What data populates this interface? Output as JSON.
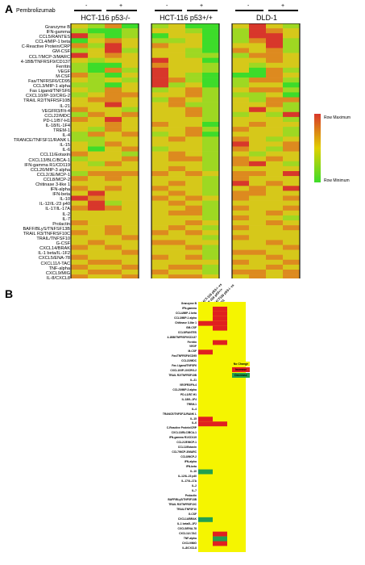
{
  "panelA": {
    "letter": "A",
    "treatment_label": "Pembrolizumab",
    "minus": "-",
    "plus": "+",
    "groups": [
      "HCT-116 p53-/-",
      "HCT-116 p53+/+",
      "DLD-1"
    ],
    "legend": {
      "max": "Row Maximum",
      "min": "Row Minimum",
      "color_max": "#d8372b",
      "color_mid": "#e0d000",
      "color_min": "#3ddc2a"
    },
    "rows": [
      "Granzyme B",
      "IFN-gamma",
      "CCL5/RANTES",
      "CCL4/MIP-1 beta",
      "C-Reactive Protein/CRP",
      "GM-CSF",
      "CCL7/MCP-3/MARC",
      "4-1BB/TNFRSF9/CD137",
      "Ferritin",
      "VEGF",
      "M-CSF",
      "Fas/TNFRSF6/CD95",
      "CCL3/MIP-1 alpha",
      "Fas Ligand/TNFSF6",
      "CXCL10/IP-10/CRG-2",
      "TRAIL R2/TNFRSF10B",
      "IL-21",
      "VEGFR3/Flt-4",
      "CCL22/MDC",
      "PD-L1/B7-H1",
      "IL-18/IL-1F4",
      "TREM-1",
      "IL-4",
      "TRANCE/TNFSF11/RANK L",
      "IL-15",
      "IL-6",
      "CCL11/Eotaxin",
      "CXCL13/BLC/BCA-1",
      "IFN-gamma R1/CD119",
      "CCL20/MIP-3 alpha",
      "CCL2/JE/MCP-1",
      "CCL8/MCP-2",
      "Chitinase 3-like 1",
      "IFN-alpha",
      "IFN-beta",
      "IL-10",
      "IL-12/IL-23 p40",
      "IL-17/IL-17A",
      "IL-2",
      "IL-7",
      "Prolactin",
      "BAFF/BLyS/TNFSF13B",
      "TRAIL R3/TNFRSF10C",
      "TRAIL/TNFSF10",
      "G-CSF",
      "CXCL14/BRAK",
      "IL-1 beta/IL-1F2",
      "CXCL5/ENA-78",
      "CXCL11/I-TAC",
      "TNF-alpha",
      "CXCL9/MIG",
      "IL-8/CXCL8"
    ],
    "heatmap_values": [
      [
        2,
        1,
        3,
        0,
        1,
        2,
        0,
        0,
        2,
        4,
        2,
        1
      ],
      [
        1,
        0,
        0,
        1,
        2,
        2,
        1,
        0,
        1,
        4,
        3,
        2
      ],
      [
        4,
        1,
        0,
        1,
        0,
        2,
        2,
        0,
        1,
        4,
        4,
        2
      ],
      [
        0,
        2,
        3,
        2,
        1,
        1,
        2,
        0,
        1,
        3,
        4,
        1
      ],
      [
        3,
        1,
        4,
        2,
        3,
        2,
        2,
        0,
        2,
        2,
        4,
        1
      ],
      [
        1,
        2,
        4,
        1,
        2,
        2,
        1,
        0,
        3,
        2,
        3,
        1
      ],
      [
        4,
        2,
        3,
        2,
        2,
        2,
        1,
        1,
        1,
        3,
        3,
        2
      ],
      [
        2,
        1,
        2,
        2,
        4,
        2,
        2,
        0,
        2,
        2,
        3,
        2
      ],
      [
        1,
        0,
        0,
        2,
        3,
        2,
        2,
        1,
        2,
        1,
        2,
        2
      ],
      [
        1,
        0,
        3,
        1,
        4,
        2,
        2,
        1,
        2,
        0,
        3,
        1
      ],
      [
        3,
        1,
        0,
        2,
        4,
        2,
        1,
        0,
        0,
        0,
        3,
        2
      ],
      [
        2,
        1,
        2,
        1,
        4,
        3,
        1,
        0,
        1,
        3,
        3,
        1
      ],
      [
        1,
        1,
        0,
        2,
        4,
        1,
        2,
        0,
        1,
        2,
        2,
        0
      ],
      [
        2,
        1,
        3,
        2,
        1,
        2,
        3,
        1,
        2,
        3,
        3,
        1
      ],
      [
        1,
        2,
        3,
        3,
        2,
        2,
        3,
        1,
        1,
        1,
        2,
        0
      ],
      [
        2,
        3,
        3,
        2,
        1,
        3,
        2,
        1,
        2,
        1,
        3,
        3
      ],
      [
        2,
        2,
        4,
        2,
        2,
        3,
        1,
        1,
        2,
        2,
        3,
        1
      ],
      [
        3,
        2,
        2,
        1,
        2,
        2,
        3,
        1,
        2,
        4,
        2,
        1
      ],
      [
        1,
        3,
        2,
        3,
        2,
        2,
        3,
        1,
        1,
        2,
        1,
        4
      ],
      [
        3,
        2,
        4,
        2,
        2,
        2,
        2,
        1,
        2,
        2,
        2,
        1
      ],
      [
        2,
        2,
        3,
        2,
        3,
        2,
        2,
        0,
        2,
        3,
        2,
        2
      ],
      [
        2,
        1,
        3,
        2,
        2,
        2,
        3,
        1,
        3,
        2,
        2,
        1
      ],
      [
        1,
        3,
        2,
        3,
        1,
        2,
        3,
        0,
        2,
        2,
        2,
        1
      ],
      [
        1,
        1,
        2,
        2,
        2,
        3,
        2,
        1,
        3,
        2,
        1,
        2
      ],
      [
        2,
        1,
        3,
        2,
        2,
        2,
        2,
        1,
        4,
        2,
        2,
        3
      ],
      [
        2,
        0,
        2,
        3,
        1,
        2,
        2,
        1,
        3,
        2,
        1,
        3
      ],
      [
        3,
        2,
        2,
        1,
        2,
        3,
        2,
        1,
        2,
        1,
        2,
        2
      ],
      [
        1,
        2,
        2,
        3,
        2,
        3,
        3,
        1,
        3,
        2,
        3,
        2
      ],
      [
        2,
        1,
        3,
        2,
        2,
        2,
        2,
        1,
        3,
        4,
        2,
        1
      ],
      [
        2,
        2,
        2,
        2,
        2,
        3,
        2,
        1,
        2,
        2,
        2,
        2
      ],
      [
        1,
        3,
        3,
        3,
        3,
        2,
        3,
        2,
        3,
        3,
        2,
        4
      ],
      [
        3,
        2,
        3,
        2,
        2,
        2,
        2,
        1,
        3,
        2,
        2,
        2
      ],
      [
        2,
        2,
        2,
        2,
        2,
        3,
        2,
        1,
        4,
        2,
        3,
        2
      ],
      [
        3,
        2,
        3,
        2,
        3,
        2,
        2,
        1,
        2,
        3,
        2,
        4
      ],
      [
        2,
        4,
        2,
        2,
        2,
        3,
        2,
        1,
        3,
        3,
        2,
        2
      ],
      [
        4,
        3,
        2,
        2,
        3,
        2,
        3,
        2,
        3,
        2,
        2,
        3
      ],
      [
        2,
        4,
        1,
        2,
        2,
        3,
        2,
        1,
        2,
        2,
        2,
        2
      ],
      [
        3,
        4,
        3,
        2,
        2,
        2,
        3,
        1,
        3,
        2,
        2,
        3
      ],
      [
        2,
        2,
        2,
        2,
        2,
        3,
        3,
        1,
        2,
        2,
        3,
        2
      ],
      [
        2,
        2,
        2,
        2,
        2,
        2,
        2,
        1,
        3,
        2,
        2,
        1
      ],
      [
        3,
        2,
        2,
        2,
        2,
        2,
        3,
        2,
        2,
        2,
        3,
        2
      ],
      [
        2,
        2,
        3,
        2,
        2,
        3,
        2,
        1,
        3,
        2,
        2,
        3
      ],
      [
        3,
        2,
        3,
        2,
        3,
        2,
        3,
        2,
        2,
        2,
        2,
        2
      ],
      [
        2,
        2,
        2,
        3,
        2,
        2,
        2,
        1,
        3,
        2,
        2,
        2
      ],
      [
        2,
        3,
        2,
        2,
        3,
        3,
        2,
        2,
        2,
        2,
        3,
        2
      ],
      [
        3,
        2,
        3,
        2,
        2,
        2,
        3,
        1,
        2,
        2,
        2,
        3
      ],
      [
        2,
        2,
        2,
        3,
        2,
        2,
        2,
        1,
        3,
        3,
        2,
        2
      ],
      [
        3,
        2,
        2,
        2,
        3,
        2,
        3,
        1,
        2,
        2,
        3,
        2
      ],
      [
        2,
        3,
        3,
        2,
        2,
        2,
        2,
        2,
        3,
        2,
        2,
        3
      ],
      [
        3,
        2,
        2,
        3,
        2,
        3,
        3,
        1,
        2,
        2,
        3,
        2
      ],
      [
        2,
        3,
        3,
        2,
        3,
        2,
        2,
        1,
        3,
        3,
        2,
        3
      ],
      [
        3,
        2,
        2,
        3,
        2,
        3,
        3,
        2,
        2,
        3,
        2,
        3
      ]
    ]
  },
  "panelB": {
    "letter": "B",
    "columns": [
      "HCT-116 p53-/- vs HCT-116 p53+/+",
      "HCT116 p53-/- vs DLD1"
    ],
    "legend": [
      {
        "label": "No Change",
        "color": "#f5f500"
      },
      {
        "label": "Increase",
        "color": "#e02020"
      },
      {
        "label": "Decrease",
        "color": "#22a050"
      }
    ],
    "rows": [
      "Granzyme B",
      "IFN-gamma",
      "CCL4/MIP-1 beta",
      "CCL3/MIP-1 alpha",
      "Chitinase 3-like 1",
      "GM-CSF",
      "CCL5/RANTES",
      "4-1BB/TNFRSF9/CD137",
      "Ferritin",
      "VEGF",
      "M-CSF",
      "Fas/TNFRSF6/CD95",
      "CCL22/MDC",
      "Fas Ligand/TNFSF6",
      "CXCL10/IP-10/CRG-2",
      "TRAIL R2/TNFRSF10B",
      "IL-21",
      "VEGFR3/Flt-4",
      "CCL20/MIP-3 alpha",
      "PD-L1/B7-H1",
      "IL-18/IL-1F4",
      "TREM-1",
      "IL-4",
      "TRANCE/TNFSF11/RANK L",
      "IL-15",
      "IL-6",
      "C-Reactive Protein/CRP",
      "CXCL13/BLC/BCA-1",
      "IFN-gamma R1/CD119",
      "CCL2/JE/MCP-1",
      "CCL11/Eotaxin",
      "CCL7/MCP-3/MARC",
      "CCL8/MCP-2",
      "IFN-alpha",
      "IFN-beta",
      "IL-10",
      "IL-12/IL-23 p40",
      "IL-17/IL-17A",
      "IL-2",
      "IL-7",
      "Prolactin",
      "BAFF/BLyS/TNFSF13B",
      "TRAIL R3/TNFRSF10C",
      "TRAIL/TNFSF10",
      "G-CSF",
      "CXCL14/BRAK",
      "IL-1 beta/IL-1F2",
      "CXCL5/ENA-78",
      "CXCL11/I-TAC",
      "TNF-alpha",
      "CXCL9/MIG",
      "IL-8/CXCL8"
    ],
    "cells": [
      [
        "n",
        "n"
      ],
      [
        "n",
        "i"
      ],
      [
        "n",
        "i"
      ],
      [
        "n",
        "i"
      ],
      [
        "i",
        "i"
      ],
      [
        "n",
        "i"
      ],
      [
        "n",
        "n"
      ],
      [
        "n",
        "n"
      ],
      [
        "n",
        "i"
      ],
      [
        "n",
        "n"
      ],
      [
        "i",
        "n"
      ],
      [
        "n",
        "n"
      ],
      [
        "n",
        "n"
      ],
      [
        "n",
        "n"
      ],
      [
        "n",
        "n"
      ],
      [
        "n",
        "n"
      ],
      [
        "n",
        "n"
      ],
      [
        "n",
        "n"
      ],
      [
        "n",
        "n"
      ],
      [
        "n",
        "n"
      ],
      [
        "n",
        "n"
      ],
      [
        "n",
        "n"
      ],
      [
        "n",
        "n"
      ],
      [
        "n",
        "n"
      ],
      [
        "i",
        "n"
      ],
      [
        "i",
        "i"
      ],
      [
        "n",
        "n"
      ],
      [
        "n",
        "n"
      ],
      [
        "n",
        "n"
      ],
      [
        "n",
        "n"
      ],
      [
        "n",
        "n"
      ],
      [
        "n",
        "n"
      ],
      [
        "n",
        "n"
      ],
      [
        "n",
        "n"
      ],
      [
        "n",
        "n"
      ],
      [
        "d",
        "n"
      ],
      [
        "n",
        "n"
      ],
      [
        "n",
        "n"
      ],
      [
        "n",
        "n"
      ],
      [
        "n",
        "n"
      ],
      [
        "n",
        "n"
      ],
      [
        "n",
        "n"
      ],
      [
        "n",
        "n"
      ],
      [
        "n",
        "n"
      ],
      [
        "n",
        "n"
      ],
      [
        "d",
        "n"
      ],
      [
        "n",
        "n"
      ],
      [
        "n",
        "n"
      ],
      [
        "n",
        "i"
      ],
      [
        "n",
        "d"
      ],
      [
        "n",
        "i"
      ],
      [
        "n",
        "n"
      ]
    ]
  }
}
